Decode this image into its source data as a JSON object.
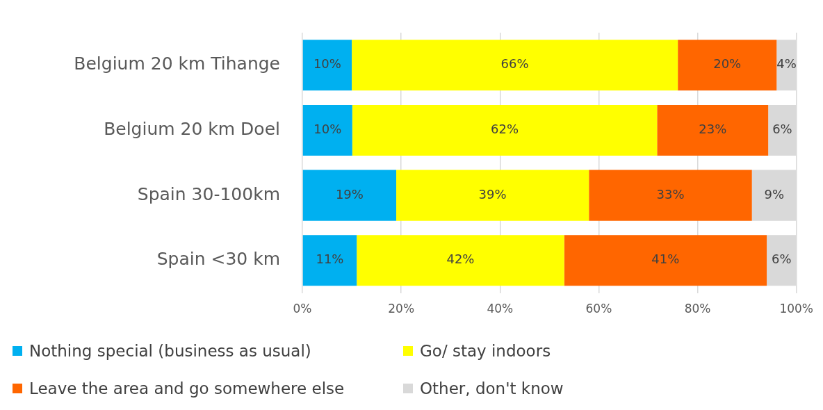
{
  "chart_data": {
    "type": "bar",
    "orientation": "horizontal",
    "stacked": true,
    "categories": [
      "Belgium 20 km Tihange",
      "Belgium 20 km Doel",
      "Spain 30-100km",
      "Spain <30 km"
    ],
    "series": [
      {
        "name": "Nothing special (business as usual)",
        "color": "#00b0f0",
        "values": [
          10,
          10.1,
          19,
          11
        ],
        "value_labels": [
          "10%",
          "10%",
          "19%",
          "11%"
        ]
      },
      {
        "name": "Go/ stay indoors",
        "color": "#ffff00",
        "values": [
          66,
          61.7,
          39,
          42
        ],
        "value_labels": [
          "66%",
          "62%",
          "39%",
          "42%"
        ]
      },
      {
        "name": "Leave the area and go somewhere else",
        "color": "#ff6600",
        "values": [
          20,
          22.5,
          33,
          41
        ],
        "value_labels": [
          "20%",
          "23%",
          "33%",
          "41%"
        ]
      },
      {
        "name": "Other, don't know",
        "color": "#d9d9d9",
        "values": [
          4,
          5.7,
          9,
          6
        ],
        "value_labels": [
          "4%",
          "6%",
          "9%",
          "6%"
        ]
      }
    ],
    "xlim": [
      0,
      100
    ],
    "xticks": [
      {
        "value": 0,
        "label": "0%"
      },
      {
        "value": 20,
        "label": "20%"
      },
      {
        "value": 40,
        "label": "40%"
      },
      {
        "value": 60,
        "label": "60%"
      },
      {
        "value": 80,
        "label": "80%"
      },
      {
        "value": 100,
        "label": "100%"
      }
    ],
    "grid": "x",
    "legend": "bottom"
  }
}
